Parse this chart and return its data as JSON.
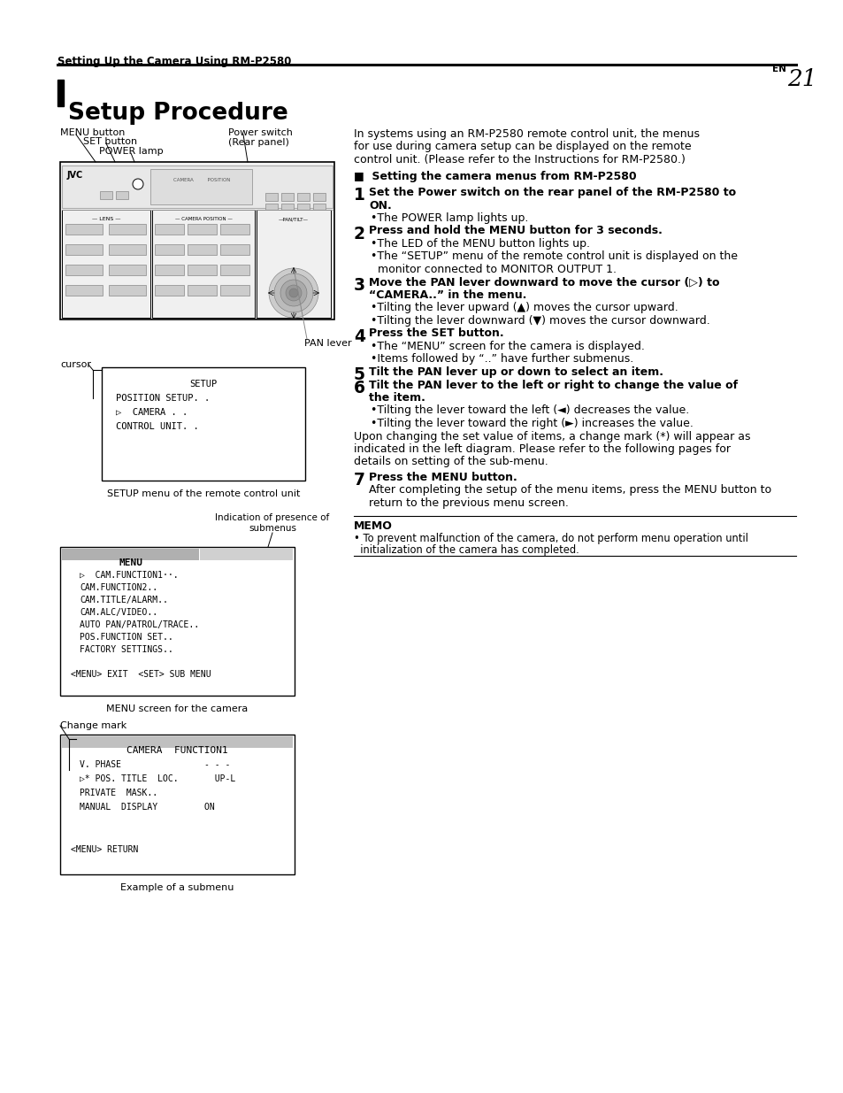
{
  "page_title": "Setting Up the Camera Using RM-P2580",
  "page_num": "21",
  "section_title": "Setup Procedure",
  "intro_text": [
    "In systems using an RM-P2580 remote control unit, the menus",
    "for use during camera setup can be displayed on the remote",
    "control unit. (Please refer to the Instructions for RM-P2580.)"
  ],
  "section_header": "■  Setting the camera menus from RM-P2580",
  "steps": [
    {
      "num": "1",
      "bold_lines": [
        "Set the Power switch on the rear panel of the RM-P2580 to",
        "ON."
      ],
      "bullets": [
        "•The POWER lamp lights up."
      ]
    },
    {
      "num": "2",
      "bold_lines": [
        "Press and hold the MENU button for 3 seconds."
      ],
      "bullets": [
        "•The LED of the MENU button lights up.",
        "•The “SETUP” menu of the remote control unit is displayed on the",
        "  monitor connected to MONITOR OUTPUT 1."
      ]
    },
    {
      "num": "3",
      "bold_lines": [
        "Move the PAN lever downward to move the cursor (▷) to",
        "“CAMERA..” in the menu."
      ],
      "bullets": [
        "•Tilting the lever upward (▲) moves the cursor upward.",
        "•Tilting the lever downward (▼) moves the cursor downward."
      ]
    },
    {
      "num": "4",
      "bold_lines": [
        "Press the SET button."
      ],
      "bullets": [
        "•The “MENU” screen for the camera is displayed.",
        "•Items followed by “..” have further submenus."
      ]
    },
    {
      "num": "5",
      "bold_lines": [
        "Tilt the PAN lever up or down to select an item."
      ],
      "bullets": []
    },
    {
      "num": "6",
      "bold_lines": [
        "Tilt the PAN lever to the left or right to change the value of",
        "the item."
      ],
      "bullets": [
        "•Tilting the lever toward the left (◄) decreases the value.",
        "•Tilting the lever toward the right (►) increases the value."
      ]
    }
  ],
  "extra_text": [
    "Upon changing the set value of items, a change mark (*) will appear as",
    "indicated in the left diagram. Please refer to the following pages for",
    "details on setting of the sub-menu."
  ],
  "step7": {
    "num": "7",
    "bold_lines": [
      "Press the MENU button."
    ],
    "text": [
      "After completing the setup of the menu items, press the MENU button to",
      "return to the previous menu screen."
    ]
  },
  "memo_title": "MEMO",
  "memo_text": [
    "• To prevent malfunction of the camera, do not perform menu operation until",
    "  initialization of the camera has completed."
  ],
  "setup_menu_caption": "SETUP menu of the remote control unit",
  "indication_label": [
    "Indication of presence of",
    "submenus"
  ],
  "menu_screen_caption": "MENU screen for the camera",
  "change_mark_label": "Change mark",
  "submenu_caption": "Example of a submenu",
  "setup_menu_lines": [
    "SETUP",
    "POSITION SETUP. .",
    "▷  CAMERA . .",
    "CONTROL UNIT. ."
  ],
  "menu_screen_lines": [
    "MENU",
    "▷  CAM.FUNCTION1··.",
    "CAM.FUNCTION2..",
    "CAM.TITLE/ALARM..",
    "CAM.ALC/VIDEO..",
    "AUTO PAN/PATROL/TRACE..",
    "POS.FUNCTION SET..",
    "FACTORY SETTINGS..",
    "",
    "<MENU> EXIT  <SET> SUB MENU"
  ],
  "submenu_lines": [
    "CAMERA  FUNCTION1",
    "V. PHASE                - - -",
    "▷* POS. TITLE  LOC.       UP-L",
    "PRIVATE  MASK..",
    "MANUAL  DISPLAY         ON",
    "",
    "",
    "<MENU> RETURN"
  ],
  "bg_color": "#ffffff"
}
